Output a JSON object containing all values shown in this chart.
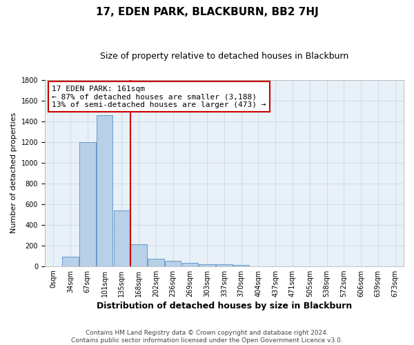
{
  "title": "17, EDEN PARK, BLACKBURN, BB2 7HJ",
  "subtitle": "Size of property relative to detached houses in Blackburn",
  "xlabel": "Distribution of detached houses by size in Blackburn",
  "ylabel": "Number of detached properties",
  "categories": [
    "0sqm",
    "34sqm",
    "67sqm",
    "101sqm",
    "135sqm",
    "168sqm",
    "202sqm",
    "236sqm",
    "269sqm",
    "303sqm",
    "337sqm",
    "370sqm",
    "404sqm",
    "437sqm",
    "471sqm",
    "505sqm",
    "538sqm",
    "572sqm",
    "606sqm",
    "639sqm",
    "673sqm"
  ],
  "values": [
    0,
    90,
    1200,
    1460,
    540,
    210,
    70,
    50,
    30,
    20,
    15,
    8,
    0,
    0,
    0,
    0,
    0,
    0,
    0,
    0,
    0
  ],
  "bar_color": "#b8d0e8",
  "bar_edge_color": "#6699cc",
  "annotation_text": "17 EDEN PARK: 161sqm\n← 87% of detached houses are smaller (3,188)\n13% of semi-detached houses are larger (473) →",
  "annotation_box_color": "#ffffff",
  "annotation_box_edge_color": "#cc0000",
  "vline_x": 4.5,
  "vline_color": "#cc0000",
  "ylim": [
    0,
    1800
  ],
  "yticks": [
    0,
    200,
    400,
    600,
    800,
    1000,
    1200,
    1400,
    1600,
    1800
  ],
  "grid_color": "#c8d4e0",
  "background_color": "#e8f0f8",
  "footer_text": "Contains HM Land Registry data © Crown copyright and database right 2024.\nContains public sector information licensed under the Open Government Licence v3.0.",
  "title_fontsize": 11,
  "subtitle_fontsize": 9,
  "xlabel_fontsize": 9,
  "ylabel_fontsize": 8,
  "tick_fontsize": 7,
  "annotation_fontsize": 8,
  "footer_fontsize": 6.5
}
